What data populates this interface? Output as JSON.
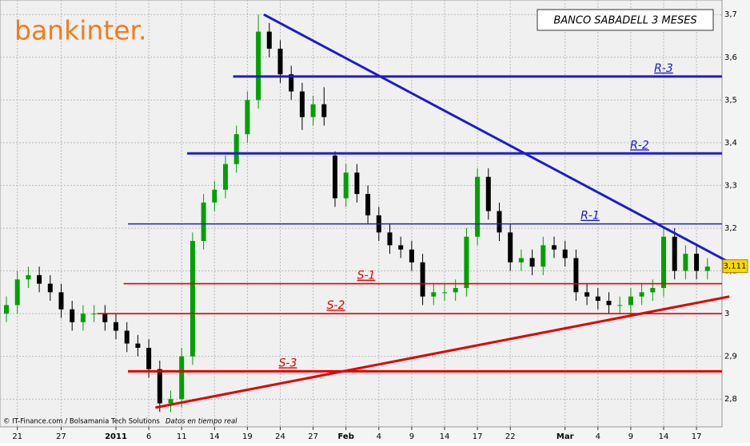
{
  "chart_data": {
    "type": "candlestick",
    "title": "BANCO SABADELL 3 MESES",
    "categories": [
      null,
      "21",
      null,
      null,
      null,
      "27",
      null,
      null,
      null,
      null,
      "2011",
      null,
      null,
      "6",
      null,
      null,
      "11",
      null,
      null,
      "14",
      null,
      null,
      "19",
      null,
      null,
      "24",
      null,
      null,
      "27",
      null,
      null,
      "Feb",
      null,
      null,
      "4",
      null,
      null,
      "9",
      null,
      null,
      "14",
      null,
      null,
      "17",
      null,
      null,
      "22",
      null,
      null,
      null,
      null,
      "Mar",
      null,
      null,
      "4",
      null,
      null,
      "9",
      null,
      null,
      "14",
      null,
      null,
      "17",
      null
    ],
    "open": [
      3.0,
      3.02,
      3.08,
      3.09,
      3.07,
      3.05,
      3.01,
      2.98,
      3.0,
      3.0,
      2.98,
      2.96,
      2.93,
      2.92,
      2.87,
      2.79,
      2.8,
      2.9,
      3.17,
      3.26,
      3.29,
      3.35,
      3.42,
      3.5,
      3.66,
      3.62,
      3.56,
      3.52,
      3.46,
      3.49,
      3.37,
      3.27,
      3.33,
      3.28,
      3.23,
      3.19,
      3.16,
      3.15,
      3.12,
      3.04,
      3.05,
      3.05,
      3.06,
      3.18,
      3.32,
      3.24,
      3.19,
      3.12,
      3.13,
      3.11,
      3.16,
      3.15,
      3.13,
      3.05,
      3.04,
      3.03,
      3.02,
      3.02,
      3.04,
      3.05,
      3.06,
      3.18,
      3.1,
      3.14,
      3.1
    ],
    "high": [
      3.04,
      3.1,
      3.11,
      3.11,
      3.09,
      3.07,
      3.03,
      3.02,
      3.02,
      3.02,
      3.0,
      2.98,
      2.95,
      2.94,
      2.89,
      2.82,
      2.92,
      3.19,
      3.28,
      3.31,
      3.37,
      3.44,
      3.52,
      3.7,
      3.68,
      3.64,
      3.58,
      3.54,
      3.51,
      3.53,
      3.38,
      3.35,
      3.35,
      3.3,
      3.25,
      3.21,
      3.18,
      3.17,
      3.14,
      3.07,
      3.07,
      3.08,
      3.2,
      3.34,
      3.34,
      3.26,
      3.21,
      3.15,
      3.15,
      3.18,
      3.18,
      3.17,
      3.15,
      3.07,
      3.06,
      3.05,
      3.04,
      3.06,
      3.07,
      3.08,
      3.2,
      3.2,
      3.16,
      3.16,
      3.13
    ],
    "low": [
      2.98,
      3.0,
      3.06,
      3.05,
      3.03,
      2.99,
      2.96,
      2.96,
      2.98,
      2.96,
      2.94,
      2.91,
      2.9,
      2.85,
      2.77,
      2.77,
      2.78,
      2.88,
      3.15,
      3.24,
      3.27,
      3.33,
      3.4,
      3.48,
      3.6,
      3.54,
      3.5,
      3.43,
      3.44,
      3.44,
      3.25,
      3.25,
      3.26,
      3.21,
      3.17,
      3.14,
      3.13,
      3.1,
      3.02,
      3.02,
      3.03,
      3.03,
      3.04,
      3.16,
      3.22,
      3.17,
      3.1,
      3.1,
      3.09,
      3.09,
      3.13,
      3.11,
      3.03,
      3.02,
      3.01,
      3.0,
      3.0,
      3.0,
      3.02,
      3.03,
      3.04,
      3.08,
      3.08,
      3.08,
      3.08
    ],
    "close": [
      3.02,
      3.08,
      3.09,
      3.07,
      3.05,
      3.01,
      2.98,
      3.0,
      3.0,
      2.98,
      2.96,
      2.93,
      2.92,
      2.87,
      2.79,
      2.8,
      2.9,
      3.17,
      3.26,
      3.29,
      3.35,
      3.42,
      3.5,
      3.66,
      3.62,
      3.56,
      3.52,
      3.46,
      3.49,
      3.46,
      3.27,
      3.33,
      3.28,
      3.23,
      3.19,
      3.16,
      3.15,
      3.12,
      3.04,
      3.05,
      3.05,
      3.06,
      3.18,
      3.32,
      3.24,
      3.19,
      3.12,
      3.13,
      3.11,
      3.16,
      3.15,
      3.13,
      3.05,
      3.04,
      3.03,
      3.02,
      3.02,
      3.04,
      3.05,
      3.06,
      3.18,
      3.1,
      3.14,
      3.1,
      3.11
    ],
    "colors": {
      "up": "#00a000",
      "down": "#000000"
    },
    "ylim": [
      2.735,
      3.734
    ],
    "yticks": [
      {
        "value": 2.8,
        "label": "2,8"
      },
      {
        "value": 2.9,
        "label": "2,9"
      },
      3,
      {
        "value": 3.1,
        "label": "3,1"
      },
      {
        "value": 3.2,
        "label": "3,2"
      },
      {
        "value": 3.3,
        "label": "3,3"
      },
      {
        "value": 3.4,
        "label": "3,4"
      },
      {
        "value": 3.5,
        "label": "3,5"
      },
      {
        "value": 3.6,
        "label": "3,6"
      },
      {
        "value": 3.7,
        "label": "3,7"
      }
    ],
    "grid": true,
    "last": {
      "value": 3.111,
      "label": "3,111"
    },
    "levels": [
      {
        "name": "R-3",
        "value": 3.555,
        "start": 20.7,
        "color": "#1c1cd0"
      },
      {
        "name": "R-2",
        "value": 3.375,
        "start": 16.5,
        "color": "#1c1cd0"
      },
      {
        "name": "R-1",
        "value": 3.21,
        "start": 11.1,
        "color": "#1c1cd0"
      },
      {
        "name": "S-1",
        "value": 3.07,
        "start": 10.7,
        "color": "#e00000"
      },
      {
        "name": "S-2",
        "value": 3.0,
        "start": 8.3,
        "color": "#e00000"
      },
      {
        "name": "S-3",
        "value": 2.865,
        "start": 11.1,
        "color": "#e00000"
      }
    ],
    "trendlines": [
      {
        "color": "#1c1cd0",
        "x": [
          23.5,
          66
        ],
        "y": [
          3.7,
          3.12
        ]
      },
      {
        "color": "#e00000",
        "x": [
          13.6,
          66
        ],
        "y": [
          2.78,
          3.04
        ]
      }
    ]
  },
  "branding": {
    "logo": "bankinter.",
    "footer": "© IT-Finance.com / Bolsamania Tech Solutions",
    "footer_note": "Datos en tiempo real"
  }
}
